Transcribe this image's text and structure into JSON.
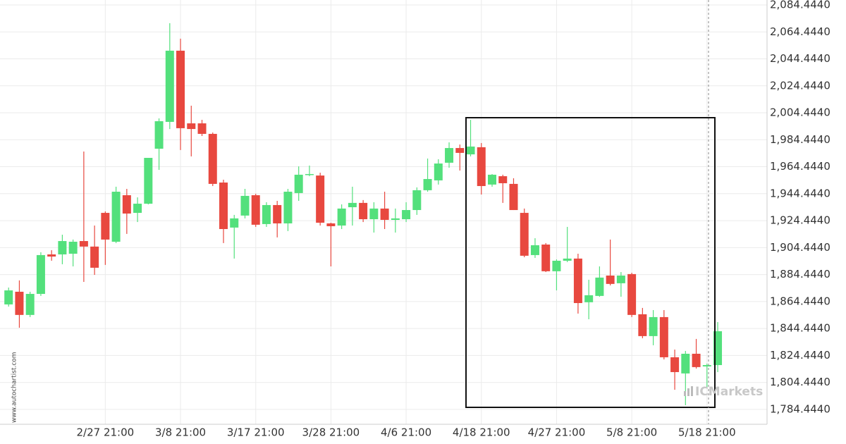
{
  "chart_data": {
    "type": "candlestick",
    "categories": [
      null,
      null,
      null,
      null,
      null,
      null,
      null,
      null,
      null,
      "2/27 21:00",
      null,
      null,
      null,
      null,
      null,
      null,
      "3/8 21:00",
      null,
      null,
      null,
      null,
      null,
      null,
      "3/17 21:00",
      null,
      null,
      null,
      null,
      null,
      null,
      "3/28 21:00",
      null,
      null,
      null,
      null,
      null,
      null,
      "4/6 21:00",
      null,
      null,
      null,
      null,
      null,
      null,
      "4/18 21:00",
      null,
      null,
      null,
      null,
      null,
      null,
      "4/27 21:00",
      null,
      null,
      null,
      null,
      null,
      null,
      "5/8 21:00",
      null,
      null,
      null,
      null,
      null,
      null,
      "5/18 21:00",
      null
    ],
    "open": [
      1862.3,
      1871.7,
      1854.5,
      1870.1,
      1899.4,
      1899.4,
      1899.9,
      1909.3,
      1905.2,
      1930.2,
      1908.8,
      1943.3,
      1930.2,
      1937.0,
      1977.8,
      1997.7,
      2050.5,
      1996.6,
      1996.6,
      1988.8,
      1952.7,
      1919.3,
      1928.2,
      1943.3,
      1921.9,
      1936.0,
      1922.4,
      1944.9,
      1958.5,
      1957.9,
      1922.4,
      1920.8,
      1934.4,
      1937.6,
      1925.5,
      1933.4,
      1925.0,
      1925.5,
      1932.3,
      1947.0,
      1954.3,
      1967.4,
      1978.3,
      1973.6,
      1978.9,
      1951.2,
      1957.4,
      1951.7,
      1930.2,
      1898.9,
      1906.7,
      1886.9,
      1894.7,
      1896.3,
      1863.9,
      1868.6,
      1883.7,
      1878.0,
      1884.8,
      1855.0,
      1838.8,
      1852.9,
      1823.1,
      1811.1,
      1825.7,
      1816.3,
      1817.3
    ],
    "high": [
      1874.8,
      1880.1,
      1871.7,
      1901.0,
      1902.5,
      1914.0,
      1910.4,
      1975.7,
      1920.8,
      1931.3,
      1949.6,
      1948.0,
      1941.7,
      1971.0,
      2000.3,
      2070.9,
      2059.4,
      2009.7,
      1999.2,
      1989.8,
      1954.8,
      1928.7,
      1948.0,
      1944.4,
      1938.1,
      1939.1,
      1948.0,
      1964.7,
      1965.3,
      1960.0,
      1922.9,
      1936.5,
      1949.6,
      1939.7,
      1938.1,
      1945.9,
      1933.4,
      1938.1,
      1949.1,
      1970.5,
      1970.0,
      1982.5,
      1980.9,
      1999.2,
      1982.0,
      1959.0,
      1958.5,
      1955.9,
      1933.4,
      1911.4,
      1907.8,
      1895.7,
      1919.8,
      1899.9,
      1880.6,
      1890.5,
      1910.4,
      1886.3,
      1885.8,
      1859.7,
      1858.1,
      1858.1,
      1828.8,
      1827.8,
      1836.7,
      1818.4,
      1849.2
    ],
    "low": [
      1860.7,
      1845.0,
      1852.9,
      1868.6,
      1894.7,
      1892.1,
      1890.5,
      1879.0,
      1884.2,
      1891.6,
      1907.8,
      1914.6,
      1923.4,
      1936.5,
      1962.1,
      1992.4,
      1976.8,
      1972.1,
      1987.2,
      1950.1,
      1907.8,
      1896.3,
      1926.1,
      1919.8,
      1919.8,
      1912.0,
      1916.7,
      1939.1,
      1957.4,
      1920.8,
      1890.5,
      1918.2,
      1920.8,
      1923.4,
      1915.6,
      1918.2,
      1915.6,
      1923.4,
      1928.7,
      1945.9,
      1951.2,
      1963.7,
      1961.6,
      1972.1,
      1943.8,
      1949.6,
      1937.6,
      1932.3,
      1897.3,
      1896.8,
      1886.3,
      1872.7,
      1893.7,
      1855.5,
      1851.3,
      1868.0,
      1876.4,
      1868.0,
      1852.9,
      1837.2,
      1832.0,
      1821.5,
      1799.0,
      1787.5,
      1814.7,
      1800.6,
      1812.1
    ],
    "close": [
      1872.7,
      1854.5,
      1870.1,
      1898.9,
      1897.8,
      1909.3,
      1908.8,
      1905.2,
      1889.5,
      1910.4,
      1945.9,
      1929.7,
      1937.0,
      1971.0,
      1998.2,
      2050.5,
      1993.0,
      1992.4,
      1988.8,
      1951.7,
      1918.2,
      1926.1,
      1942.8,
      1921.4,
      1936.0,
      1922.4,
      1945.9,
      1958.5,
      1959.0,
      1922.9,
      1920.3,
      1933.4,
      1937.6,
      1925.5,
      1933.4,
      1925.0,
      1926.1,
      1932.3,
      1947.0,
      1955.3,
      1966.8,
      1978.3,
      1974.7,
      1979.4,
      1950.1,
      1958.5,
      1952.2,
      1932.3,
      1898.4,
      1906.2,
      1886.9,
      1894.7,
      1896.3,
      1863.3,
      1869.1,
      1882.2,
      1877.5,
      1883.7,
      1854.5,
      1838.8,
      1852.9,
      1823.1,
      1812.1,
      1825.7,
      1815.8,
      1817.3,
      1842.4
    ],
    "up_color": "#53e07c",
    "down_color": "#e8483f",
    "ylim": [
      1773.4,
      2088.1
    ],
    "yticks": [
      {
        "value": 1784.444,
        "label": "1,784.4440"
      },
      {
        "value": 1804.444,
        "label": "1,804.4440"
      },
      {
        "value": 1824.444,
        "label": "1,824.4440"
      },
      {
        "value": 1844.444,
        "label": "1,844.4440"
      },
      {
        "value": 1864.444,
        "label": "1,864.4440"
      },
      {
        "value": 1884.444,
        "label": "1,884.4440"
      },
      {
        "value": 1904.444,
        "label": "1,904.4440"
      },
      {
        "value": 1924.444,
        "label": "1,924.4440"
      },
      {
        "value": 1944.444,
        "label": "1,944.4440"
      },
      {
        "value": 1964.444,
        "label": "1,964.4440"
      },
      {
        "value": 1984.444,
        "label": "1,984.4440"
      },
      {
        "value": 2004.444,
        "label": "2,004.4440"
      },
      {
        "value": 2024.444,
        "label": "2,024.4440"
      },
      {
        "value": 2044.444,
        "label": "2,044.4440"
      },
      {
        "value": 2064.444,
        "label": "2,064.4440"
      },
      {
        "value": 2084.444,
        "label": "2,084.4440"
      }
    ],
    "grid": true,
    "y_axis_side": "right",
    "watermark": "www.autochartist.com",
    "logo": "ICMarkets"
  }
}
